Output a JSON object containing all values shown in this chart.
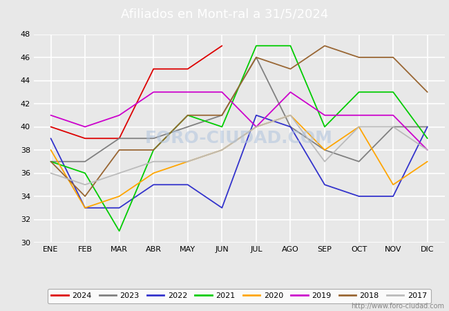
{
  "title": "Afiliados en Mont-ral a 31/5/2024",
  "title_color": "#ffffff",
  "title_bg_color": "#4472c4",
  "months": [
    "ENE",
    "FEB",
    "MAR",
    "ABR",
    "MAY",
    "JUN",
    "JUL",
    "AGO",
    "SEP",
    "OCT",
    "NOV",
    "DIC"
  ],
  "watermark": "FORO-CIUDAD.COM",
  "url": "http://www.foro-ciudad.com",
  "ylim": [
    30,
    48
  ],
  "yticks": [
    30,
    32,
    34,
    36,
    38,
    40,
    42,
    44,
    46,
    48
  ],
  "series": [
    {
      "label": "2024",
      "color": "#dd0000",
      "data": [
        40,
        39,
        39,
        45,
        45,
        47,
        null,
        null,
        null,
        null,
        null,
        null
      ]
    },
    {
      "label": "2023",
      "color": "#808080",
      "data": [
        37,
        37,
        39,
        39,
        40,
        41,
        46,
        40,
        38,
        37,
        40,
        40
      ]
    },
    {
      "label": "2022",
      "color": "#3333cc",
      "data": [
        39,
        33,
        33,
        35,
        35,
        33,
        41,
        40,
        35,
        34,
        34,
        40
      ]
    },
    {
      "label": "2021",
      "color": "#00cc00",
      "data": [
        37,
        36,
        31,
        38,
        41,
        40,
        47,
        47,
        40,
        43,
        43,
        39
      ]
    },
    {
      "label": "2020",
      "color": "#ffa500",
      "data": [
        38,
        33,
        34,
        36,
        37,
        38,
        40,
        41,
        38,
        40,
        35,
        37
      ]
    },
    {
      "label": "2019",
      "color": "#cc00cc",
      "data": [
        41,
        40,
        41,
        43,
        43,
        43,
        40,
        43,
        41,
        41,
        41,
        38
      ]
    },
    {
      "label": "2018",
      "color": "#996633",
      "data": [
        37,
        34,
        38,
        38,
        41,
        41,
        46,
        45,
        47,
        46,
        46,
        43
      ]
    },
    {
      "label": "2017",
      "color": "#bbbbbb",
      "data": [
        36,
        35,
        36,
        37,
        37,
        38,
        40,
        41,
        37,
        40,
        40,
        38
      ]
    }
  ],
  "bg_color": "#e8e8e8",
  "plot_bg_color": "#e8e8e8",
  "grid_color": "#ffffff",
  "legend_border_color": "#999999",
  "font_size_title": 13,
  "font_size_ticks": 8,
  "font_size_legend": 8,
  "line_width": 1.3
}
